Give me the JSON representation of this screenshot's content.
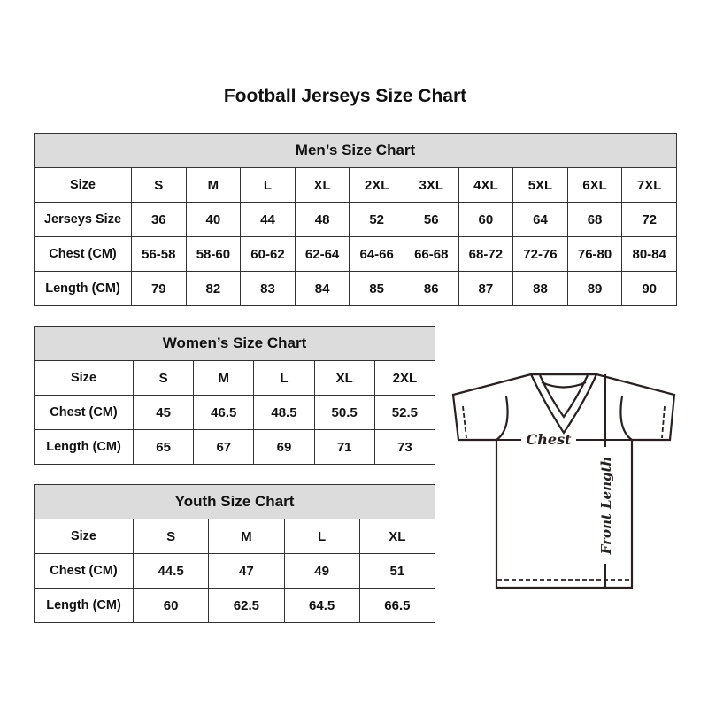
{
  "title": "Football Jerseys Size Chart",
  "tables": {
    "men": {
      "heading": "Men’s Size Chart",
      "rows": [
        [
          "Size",
          "S",
          "M",
          "L",
          "XL",
          "2XL",
          "3XL",
          "4XL",
          "5XL",
          "6XL",
          "7XL"
        ],
        [
          "Jerseys Size",
          "36",
          "40",
          "44",
          "48",
          "52",
          "56",
          "60",
          "64",
          "68",
          "72"
        ],
        [
          "Chest (CM)",
          "56-58",
          "58-60",
          "60-62",
          "62-64",
          "64-66",
          "66-68",
          "68-72",
          "72-76",
          "76-80",
          "80-84"
        ],
        [
          "Length (CM)",
          "79",
          "82",
          "83",
          "84",
          "85",
          "86",
          "87",
          "88",
          "89",
          "90"
        ]
      ]
    },
    "women": {
      "heading": "Women’s Size Chart",
      "rows": [
        [
          "Size",
          "S",
          "M",
          "L",
          "XL",
          "2XL"
        ],
        [
          "Chest (CM)",
          "45",
          "46.5",
          "48.5",
          "50.5",
          "52.5"
        ],
        [
          "Length (CM)",
          "65",
          "67",
          "69",
          "71",
          "73"
        ]
      ]
    },
    "youth": {
      "heading": "Youth Size Chart",
      "rows": [
        [
          "Size",
          "S",
          "M",
          "L",
          "XL"
        ],
        [
          "Chest (CM)",
          "44.5",
          "47",
          "49",
          "51"
        ],
        [
          "Length (CM)",
          "60",
          "62.5",
          "64.5",
          "66.5"
        ]
      ]
    }
  },
  "diagram": {
    "chest_label": "Chest",
    "length_label": "Front Length"
  },
  "colors": {
    "header_bg": "#dcdcdc",
    "border": "#333333"
  }
}
